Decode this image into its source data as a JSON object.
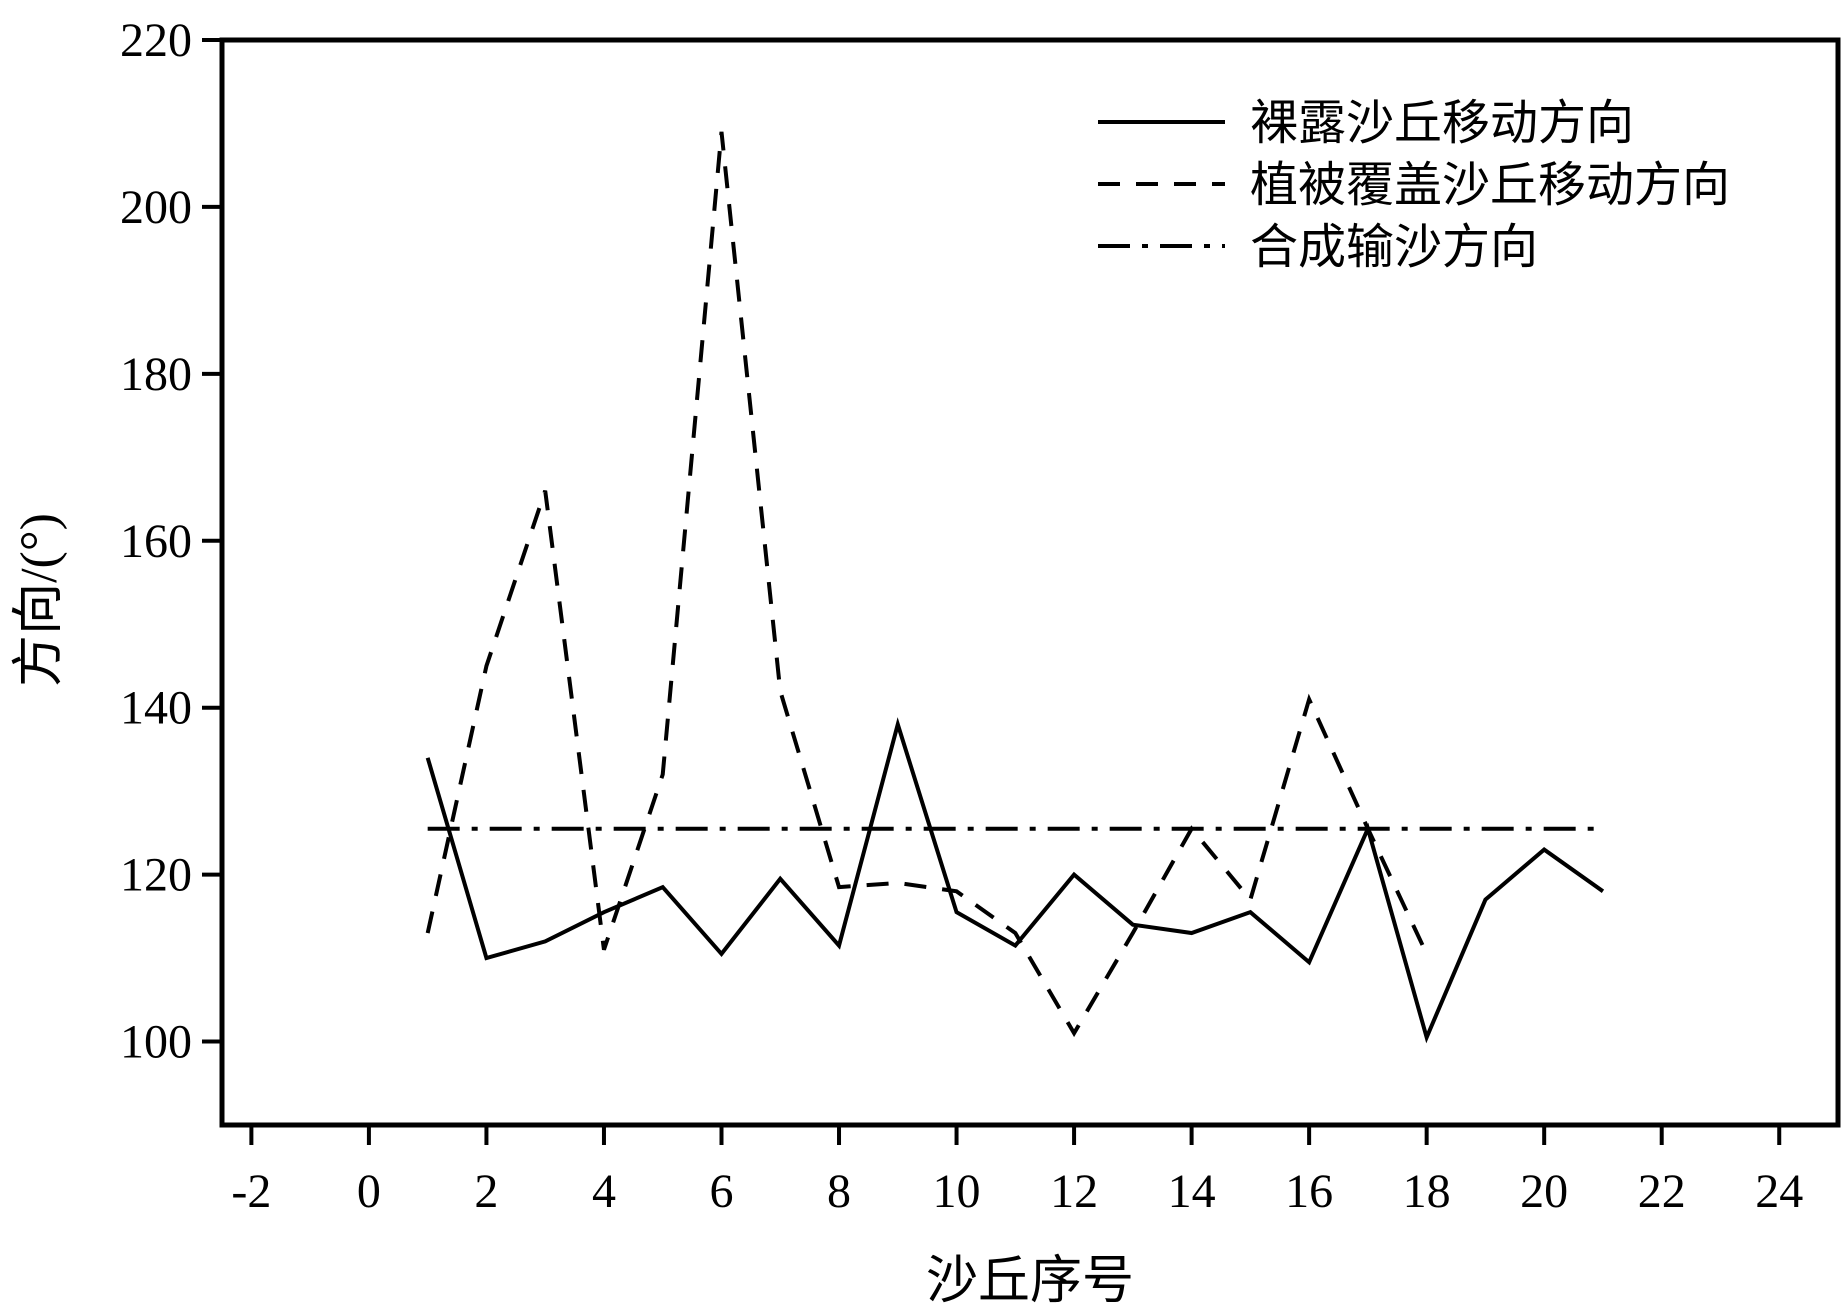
{
  "chart_data": {
    "type": "line",
    "title": "",
    "xlabel": "沙丘序号",
    "ylabel": "方向/(°)",
    "xlim": [
      -2.5,
      25
    ],
    "ylim": [
      90,
      220
    ],
    "xticks": [
      -2,
      0,
      2,
      4,
      6,
      8,
      10,
      12,
      14,
      16,
      18,
      20,
      22,
      24
    ],
    "yticks": [
      100,
      120,
      140,
      160,
      180,
      200,
      220
    ],
    "grid": false,
    "legend_position": "top-right",
    "series": [
      {
        "name": "裸露沙丘移动方向",
        "style": "solid",
        "color": "#000000",
        "x": [
          1,
          2,
          3,
          4,
          5,
          6,
          7,
          8,
          9,
          10,
          11,
          12,
          13,
          14,
          15,
          16,
          17,
          18,
          19,
          20,
          21
        ],
        "y": [
          134,
          110,
          112,
          115.5,
          118.5,
          110.5,
          119.5,
          111.5,
          138,
          115.5,
          111.5,
          120,
          114,
          113,
          115.5,
          109.5,
          125.5,
          100.5,
          117,
          123,
          118
        ]
      },
      {
        "name": "植被覆盖沙丘移动方向",
        "style": "dashed",
        "color": "#000000",
        "x": [
          1,
          2,
          3,
          4,
          5,
          6,
          7,
          8,
          9,
          10,
          11,
          12,
          13,
          14,
          15,
          16,
          17,
          18
        ],
        "y": [
          113,
          145,
          166,
          111,
          132,
          209,
          142,
          118.5,
          119,
          118,
          113,
          101,
          113,
          125.5,
          117,
          141,
          125.5,
          110.5
        ]
      },
      {
        "name": "合成输沙方向",
        "style": "dashdot",
        "color": "#000000",
        "x": [
          1,
          21
        ],
        "y": [
          125.5,
          125.5
        ]
      }
    ]
  }
}
